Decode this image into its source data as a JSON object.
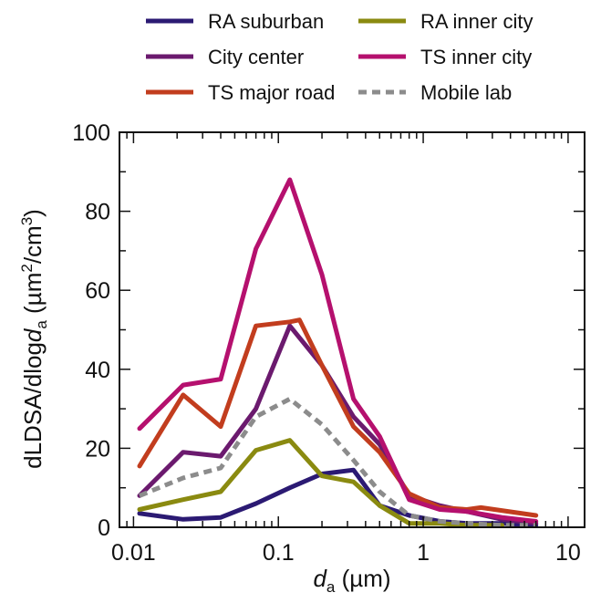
{
  "chart_data": {
    "type": "line",
    "xscale": "log",
    "xlim": [
      0.008,
      13
    ],
    "ylim": [
      0,
      100
    ],
    "grid": false,
    "legend_placement": "top",
    "xlabel": {
      "var": "d",
      "sub": "a",
      "unit": " (µm)"
    },
    "ylabel": {
      "text": "dLDSA/dlog",
      "var": "d",
      "sub": "a",
      "unit_open": " (µm",
      "sup1": "2",
      "unit_mid": "/cm",
      "sup2": "3",
      "unit_close": ")"
    },
    "x_ticks": [
      0.01,
      0.1,
      1,
      10
    ],
    "x_tick_labels": [
      "0.01",
      "0.1",
      "1",
      "10"
    ],
    "y_ticks": [
      0,
      20,
      40,
      60,
      80,
      100
    ],
    "y_tick_labels": [
      "0",
      "20",
      "40",
      "60",
      "80",
      "100"
    ],
    "series": [
      {
        "name": "RA suburban",
        "color": "#2b1a73",
        "dash": false,
        "x": [
          0.011,
          0.022,
          0.04,
          0.07,
          0.12,
          0.2,
          0.33,
          0.5,
          0.8,
          1.3,
          2.0,
          3.5,
          6.0
        ],
        "y": [
          3.5,
          2.0,
          2.5,
          6,
          10,
          13.5,
          14.5,
          5.5,
          3,
          1.5,
          1,
          1,
          0.5
        ]
      },
      {
        "name": "City center",
        "color": "#6b1a6e",
        "dash": false,
        "x": [
          0.011,
          0.022,
          0.04,
          0.07,
          0.12,
          0.2,
          0.33,
          0.5,
          0.8,
          1.3,
          2.0,
          3.5,
          6.0
        ],
        "y": [
          8,
          19,
          18,
          30,
          51,
          41,
          28,
          21,
          8,
          5.5,
          4,
          2,
          1
        ]
      },
      {
        "name": "TS major road",
        "color": "#c23d1e",
        "dash": false,
        "x": [
          0.011,
          0.022,
          0.04,
          0.07,
          0.12,
          0.14,
          0.2,
          0.33,
          0.5,
          0.8,
          1.3,
          2.0,
          2.5,
          6.0
        ],
        "y": [
          15.5,
          33.5,
          25.5,
          51,
          52,
          52.5,
          41,
          25.5,
          19,
          8.5,
          5,
          4.5,
          5,
          3
        ]
      },
      {
        "name": "RA inner city",
        "color": "#8a8a10",
        "dash": false,
        "x": [
          0.011,
          0.022,
          0.04,
          0.07,
          0.12,
          0.2,
          0.33,
          0.5,
          0.8,
          1.3,
          2.0,
          3.5
        ],
        "y": [
          4.5,
          7,
          9,
          19.5,
          22,
          13,
          11.5,
          5.5,
          1,
          1,
          0.5,
          0.5
        ]
      },
      {
        "name": "TS inner city",
        "color": "#b5106e",
        "dash": false,
        "x": [
          0.011,
          0.022,
          0.04,
          0.07,
          0.12,
          0.2,
          0.33,
          0.5,
          0.8,
          1.3,
          2.0,
          3.5,
          6.0
        ],
        "y": [
          25,
          36,
          37.5,
          70.5,
          88,
          64,
          32.5,
          23,
          7,
          4.5,
          4,
          2.5,
          1.5
        ]
      },
      {
        "name": "Mobile lab",
        "color": "#8c8c8c",
        "dash": true,
        "x": [
          0.011,
          0.022,
          0.04,
          0.07,
          0.12,
          0.2,
          0.33,
          0.5,
          0.8,
          1.3,
          2.0,
          3.5,
          6.0
        ],
        "y": [
          8,
          12.5,
          15,
          28,
          32.5,
          26,
          17,
          9,
          3,
          1.5,
          1,
          0.5,
          0.5
        ]
      }
    ]
  }
}
